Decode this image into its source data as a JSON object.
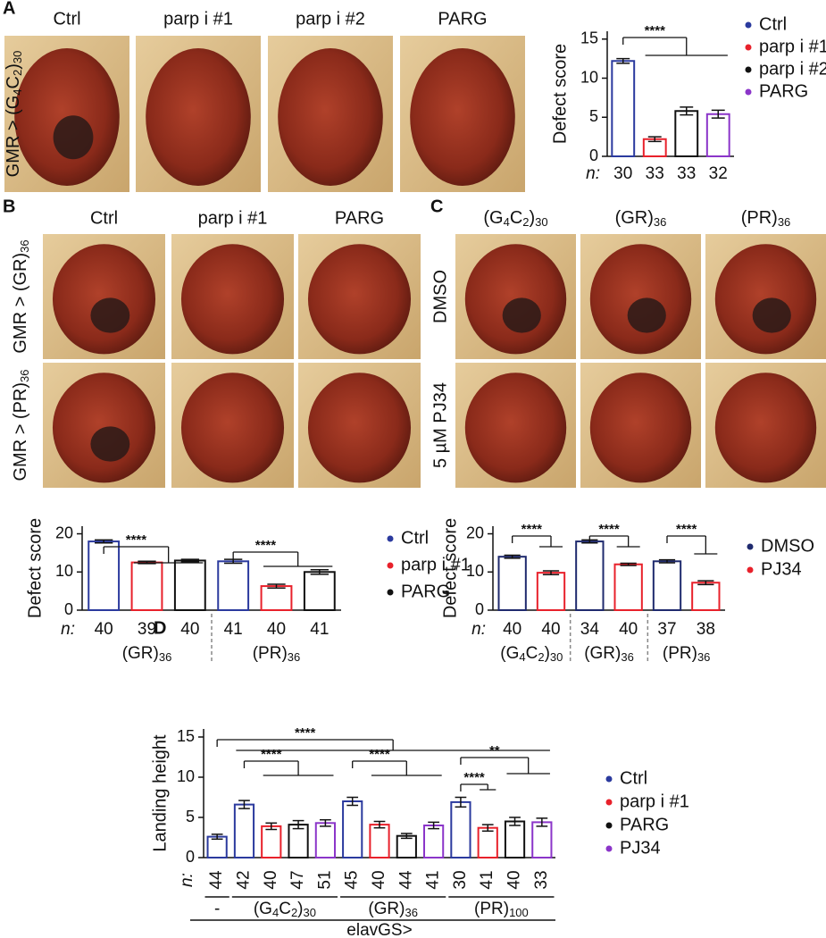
{
  "panel_labels": [
    "A",
    "B",
    "C",
    "D"
  ],
  "photos": {
    "A": {
      "columns": [
        "Ctrl",
        "parp i #1",
        "parp i #2",
        "PARG"
      ],
      "rows": [
        [
          "GMR > (G",
          "4",
          "C",
          "2",
          ")",
          "30"
        ]
      ]
    },
    "B": {
      "columns": [
        "Ctrl",
        "parp i #1",
        "PARG"
      ],
      "rows": [
        [
          "GMR > (GR)",
          "36"
        ],
        [
          "GMR > (PR)",
          "36"
        ]
      ]
    },
    "C": {
      "columns": [
        [
          "(G",
          "4",
          "C",
          "2",
          ")",
          "30"
        ],
        [
          "(GR)",
          "36"
        ],
        [
          "(PR)",
          "36"
        ]
      ],
      "rows": [
        "DMSO",
        "5 µM PJ34"
      ]
    }
  },
  "chart_data": [
    {
      "type": "bar",
      "y_label": "Defect score",
      "n_label": "n:",
      "categories": [
        "30",
        "33",
        "33",
        "32"
      ],
      "series": [
        {
          "name": "Ctrl",
          "color": "#2b3a9e",
          "values": [
            12.2,
            null,
            null,
            null
          ],
          "errors": [
            0.3,
            null,
            null,
            null
          ]
        },
        {
          "name": "parp i #1",
          "color": "#e8212b",
          "values": [
            null,
            2.2,
            null,
            null
          ],
          "errors": [
            null,
            0.3,
            null,
            null
          ]
        },
        {
          "name": "parp i #2",
          "color": "#111111",
          "values": [
            null,
            null,
            5.8,
            null
          ],
          "errors": [
            null,
            null,
            0.5,
            null
          ]
        },
        {
          "name": "PARG",
          "color": "#8b35c9",
          "values": [
            null,
            null,
            null,
            5.4
          ],
          "errors": [
            null,
            null,
            null,
            0.5
          ]
        }
      ],
      "ylim": [
        0,
        16
      ],
      "yticks": [
        0,
        5,
        10,
        15
      ],
      "annotations": [
        "****"
      ]
    },
    {
      "type": "bar",
      "y_label": "Defect score",
      "n_label": "n:",
      "categories": [
        "40",
        "39",
        "40",
        "41",
        "40",
        "41"
      ],
      "group_labels": [
        [
          "(GR)",
          "36"
        ],
        [
          "(PR)",
          "36"
        ]
      ],
      "series": [
        {
          "name": "Ctrl",
          "color": "#2b3a9e",
          "values": [
            18,
            null,
            null,
            12.8,
            null,
            null
          ],
          "errors": [
            0.4,
            null,
            null,
            0.5,
            null,
            null
          ]
        },
        {
          "name": "parp i #1",
          "color": "#e8212b",
          "values": [
            null,
            12.5,
            null,
            null,
            6.3,
            null
          ],
          "errors": [
            null,
            0.3,
            null,
            null,
            0.5,
            null
          ]
        },
        {
          "name": "PARG",
          "color": "#111111",
          "values": [
            null,
            null,
            13,
            null,
            null,
            10
          ],
          "errors": [
            null,
            null,
            0.3,
            null,
            null,
            0.6
          ]
        }
      ],
      "ylim": [
        0,
        22
      ],
      "yticks": [
        0,
        10,
        20
      ],
      "annotations": [
        "****",
        "****"
      ]
    },
    {
      "type": "bar",
      "y_label": "Defect score",
      "n_label": "n:",
      "categories": [
        "40",
        "40",
        "34",
        "40",
        "37",
        "38"
      ],
      "group_labels": [
        [
          "(G",
          "4",
          "C",
          "2",
          ")",
          "30"
        ],
        [
          "(GR)",
          "36"
        ],
        [
          "(PR)",
          "36"
        ]
      ],
      "series": [
        {
          "name": "DMSO",
          "color": "#1f2a6e",
          "values": [
            14,
            null,
            18,
            null,
            12.8,
            null
          ],
          "errors": [
            0.4,
            null,
            0.4,
            null,
            0.4,
            null
          ]
        },
        {
          "name": "PJ34",
          "color": "#e8212b",
          "values": [
            null,
            9.8,
            null,
            12,
            null,
            7.2
          ],
          "errors": [
            null,
            0.5,
            null,
            0.3,
            null,
            0.5
          ]
        }
      ],
      "ylim": [
        0,
        22
      ],
      "yticks": [
        0,
        10,
        20
      ],
      "annotations": [
        "****",
        "****",
        "****"
      ]
    },
    {
      "type": "bar",
      "y_label": "Landing height",
      "n_label": "n:",
      "x_label": "elavGS>",
      "categories": [
        "44",
        "42",
        "40",
        "47",
        "51",
        "45",
        "40",
        "44",
        "41",
        "30",
        "41",
        "40",
        "33"
      ],
      "group_labels": [
        [
          "-"
        ],
        [
          "(G",
          "4",
          "C",
          "2",
          ")",
          "30"
        ],
        [
          "(GR)",
          "36"
        ],
        [
          "(PR)",
          "100"
        ]
      ],
      "series": [
        {
          "name": "Ctrl",
          "color": "#2b3a9e",
          "values": [
            2.6,
            6.6,
            null,
            null,
            null,
            7.0,
            null,
            null,
            null,
            6.9,
            null,
            null,
            null
          ],
          "errors": [
            0.3,
            0.5,
            null,
            null,
            null,
            0.5,
            null,
            null,
            null,
            0.6,
            null,
            null,
            null
          ]
        },
        {
          "name": "parp i #1",
          "color": "#e8212b",
          "values": [
            null,
            null,
            3.9,
            null,
            null,
            null,
            4.1,
            null,
            null,
            null,
            3.7,
            null,
            null
          ],
          "errors": [
            null,
            null,
            0.4,
            null,
            null,
            null,
            0.4,
            null,
            null,
            null,
            0.4,
            null,
            null
          ]
        },
        {
          "name": "PARG",
          "color": "#111111",
          "values": [
            null,
            null,
            null,
            4.1,
            null,
            null,
            null,
            2.7,
            null,
            null,
            null,
            4.5,
            null
          ],
          "errors": [
            null,
            null,
            null,
            0.5,
            null,
            null,
            null,
            0.3,
            null,
            null,
            null,
            0.5,
            null
          ]
        },
        {
          "name": "PJ34",
          "color": "#8b35c9",
          "values": [
            null,
            null,
            null,
            null,
            4.3,
            null,
            null,
            null,
            4.0,
            null,
            null,
            null,
            4.4
          ],
          "errors": [
            null,
            null,
            null,
            null,
            0.4,
            null,
            null,
            null,
            0.4,
            null,
            null,
            null,
            0.5
          ]
        }
      ],
      "ylim": [
        0,
        16
      ],
      "yticks": [
        0,
        5,
        10,
        15
      ],
      "annotations": [
        "****",
        "****",
        "****",
        "****",
        "**"
      ]
    }
  ]
}
